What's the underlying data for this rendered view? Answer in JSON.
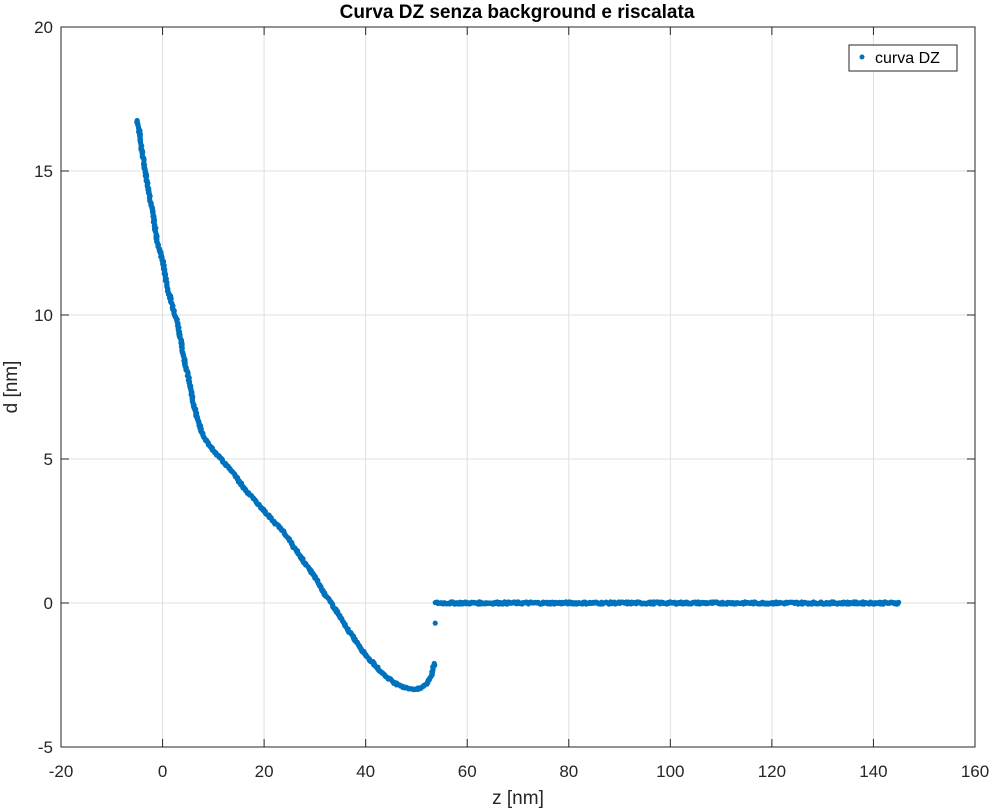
{
  "chart_data": {
    "type": "scatter",
    "title": "Curva DZ senza background e riscalata",
    "xlabel": "z [nm]",
    "ylabel": "d [nm]",
    "xlim": [
      -20,
      160
    ],
    "ylim": [
      -5,
      20
    ],
    "xticks": [
      -20,
      0,
      20,
      40,
      60,
      80,
      100,
      120,
      140,
      160
    ],
    "yticks": [
      -5,
      0,
      5,
      10,
      15,
      20
    ],
    "xtick_labels": [
      "-20",
      "0",
      "20",
      "40",
      "60",
      "80",
      "100",
      "120",
      "140",
      "160"
    ],
    "ytick_labels": [
      "-5",
      "0",
      "5",
      "10",
      "15",
      "20"
    ],
    "grid": true,
    "legend": {
      "entries": [
        "curva DZ"
      ],
      "placement": "top-right"
    },
    "series": [
      {
        "name": "curva DZ",
        "color": "#0072bd",
        "marker": "dot",
        "approach_path": [
          [
            -5,
            16.75
          ],
          [
            -4.5,
            16.3
          ],
          [
            -4,
            15.6
          ],
          [
            -3,
            14.6
          ],
          [
            -2,
            13.6
          ],
          [
            -1,
            12.5
          ],
          [
            0,
            11.9
          ],
          [
            1,
            10.9
          ],
          [
            2,
            10.3
          ],
          [
            3,
            9.7
          ],
          [
            4,
            8.7
          ],
          [
            5,
            7.9
          ],
          [
            6,
            7.0
          ],
          [
            7,
            6.3
          ],
          [
            8,
            5.8
          ],
          [
            10,
            5.3
          ],
          [
            12,
            4.9
          ],
          [
            14,
            4.5
          ],
          [
            16,
            4.0
          ],
          [
            18,
            3.6
          ],
          [
            20,
            3.2
          ],
          [
            22,
            2.8
          ],
          [
            24,
            2.45
          ],
          [
            26,
            1.9
          ],
          [
            28,
            1.4
          ],
          [
            30,
            0.9
          ],
          [
            32,
            0.3
          ],
          [
            34,
            -0.2
          ],
          [
            36,
            -0.8
          ],
          [
            38,
            -1.3
          ],
          [
            40,
            -1.8
          ],
          [
            42,
            -2.2
          ],
          [
            44,
            -2.55
          ],
          [
            46,
            -2.8
          ],
          [
            48,
            -2.95
          ],
          [
            50,
            -3.0
          ],
          [
            51,
            -2.95
          ],
          [
            52,
            -2.8
          ],
          [
            53,
            -2.5
          ],
          [
            53.5,
            -2.1
          ]
        ],
        "jump_points": [
          [
            53.7,
            -0.7
          ]
        ],
        "baseline": {
          "z_start": 53.7,
          "z_end": 145,
          "d": 0.0,
          "noise": 0.08
        }
      }
    ]
  }
}
